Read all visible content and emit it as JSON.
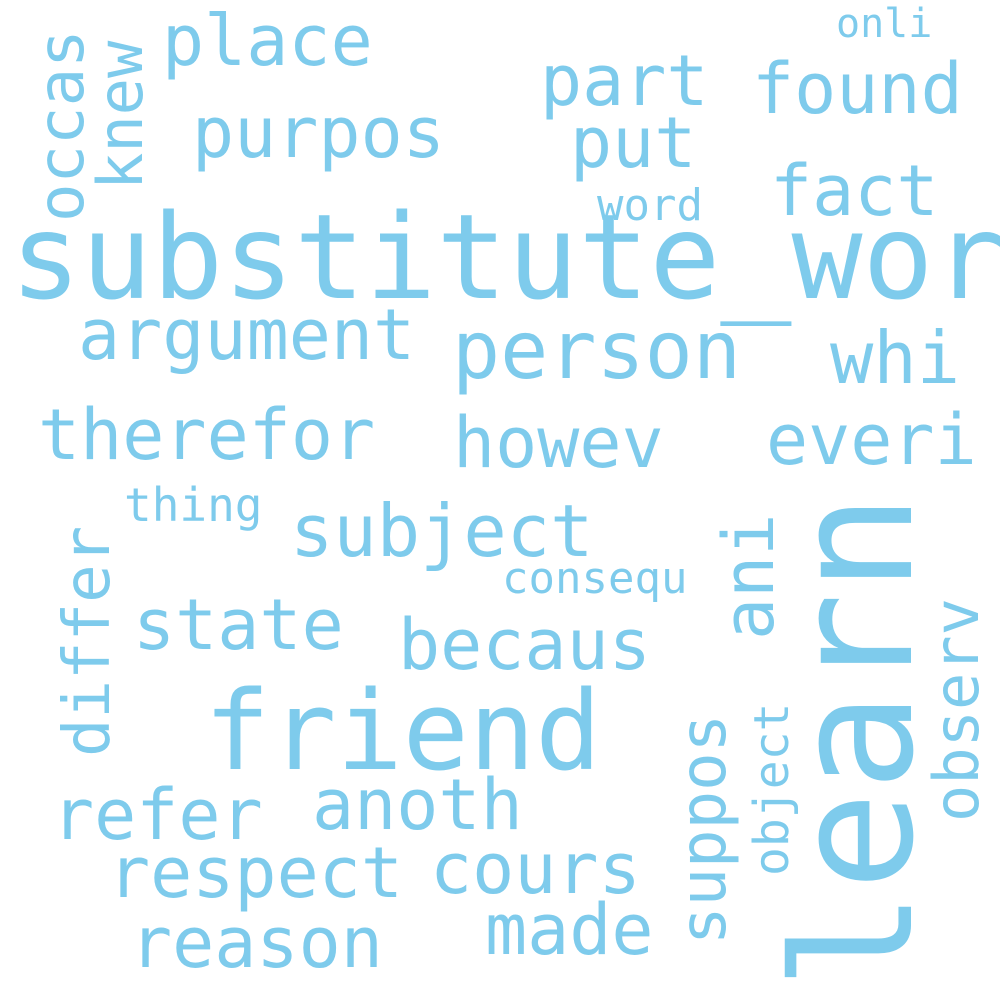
{
  "cloud": {
    "text_color": "#7ecbec",
    "background": "#ffffff",
    "words": {
      "substitute_word": "substitute_word",
      "learn": "learn",
      "friend": "friend",
      "person": "person",
      "argument": "argument",
      "therefor": "therefor",
      "howev": "howev",
      "everi": "everi",
      "whi": "whi",
      "subject": "subject",
      "state": "state",
      "becaus": "becaus",
      "refer": "refer",
      "anoth": "anoth",
      "respect": "respect",
      "cours": "cours",
      "reason": "reason",
      "made": "made",
      "place": "place",
      "purpos": "purpos",
      "part": "part",
      "found": "found",
      "put": "put",
      "fact": "fact",
      "word": "word",
      "onli": "onli",
      "thing": "thing",
      "consequ": "consequ",
      "occas": "occas",
      "knew": "knew",
      "differ": "differ",
      "ani": "ani",
      "observ": "observ",
      "suppos": "suppos",
      "object": "object"
    }
  }
}
